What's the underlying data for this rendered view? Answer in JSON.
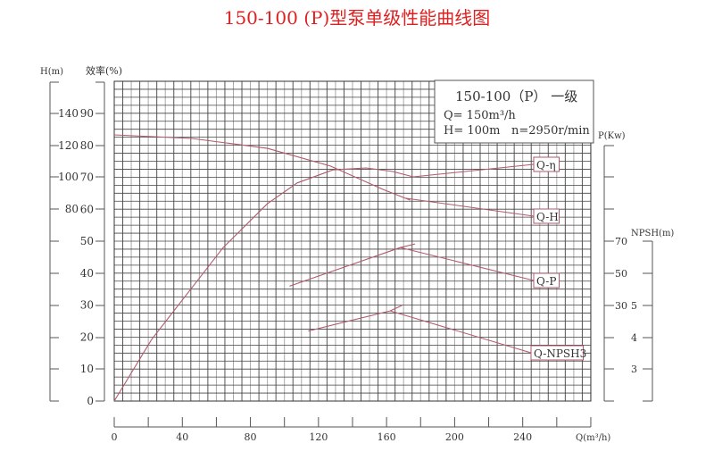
{
  "chart_data": {
    "type": "line",
    "title": "150-100 (P)型泵单级性能曲线图",
    "title_color": "#e02020",
    "curve_color": "#b05a6a",
    "grid": true,
    "xlabel": "Q(m³/h)",
    "xlim": [
      0,
      280
    ],
    "x_ticks": [
      "0",
      "40",
      "80",
      "120",
      "160",
      "200",
      "240"
    ],
    "axes": {
      "head": {
        "label": "H(m)",
        "ticks": [
          "140",
          "120",
          "100",
          "80"
        ]
      },
      "efficiency": {
        "label": "效率(%)",
        "ticks": [
          "90",
          "80",
          "70",
          "60",
          "50",
          "40",
          "30",
          "20",
          "10",
          "0"
        ],
        "ylim": [
          0,
          100
        ]
      },
      "power": {
        "label": "P(Kw)",
        "ticks": [
          "70",
          "50",
          "30"
        ]
      },
      "npsh": {
        "label": "NPSH(m)",
        "ticks": [
          "5",
          "4",
          "3"
        ]
      }
    },
    "info_box": {
      "model": "150-100（P） 一级",
      "flow": "Q= 150m³/h",
      "head": "H= 100m",
      "speed": "n=2950r/min"
    },
    "series": [
      {
        "name": "Q-η",
        "axis": "efficiency",
        "x": [
          0,
          22,
          64,
          90,
          107.5,
          128.5,
          148,
          163.6,
          175.7
        ],
        "y": [
          0,
          19.3,
          48,
          61.7,
          68.2,
          72.3,
          72.9,
          71.8,
          70.1
        ]
      },
      {
        "name": "Q-H",
        "axis": "head",
        "x": [
          0,
          45.6,
          90,
          127,
          158,
          174
        ],
        "y": [
          126.8,
          124.6,
          118.4,
          107.3,
          92.7,
          86
        ]
      },
      {
        "name": "Q-P",
        "axis": "power",
        "x": [
          103,
          168,
          176.7
        ],
        "y": [
          42,
          66,
          68.3
        ]
      },
      {
        "name": "Q-NPSH3",
        "axis": "npsh",
        "x": [
          114,
          162,
          169
        ],
        "y": [
          4.2,
          4.83,
          5.0
        ]
      }
    ]
  }
}
